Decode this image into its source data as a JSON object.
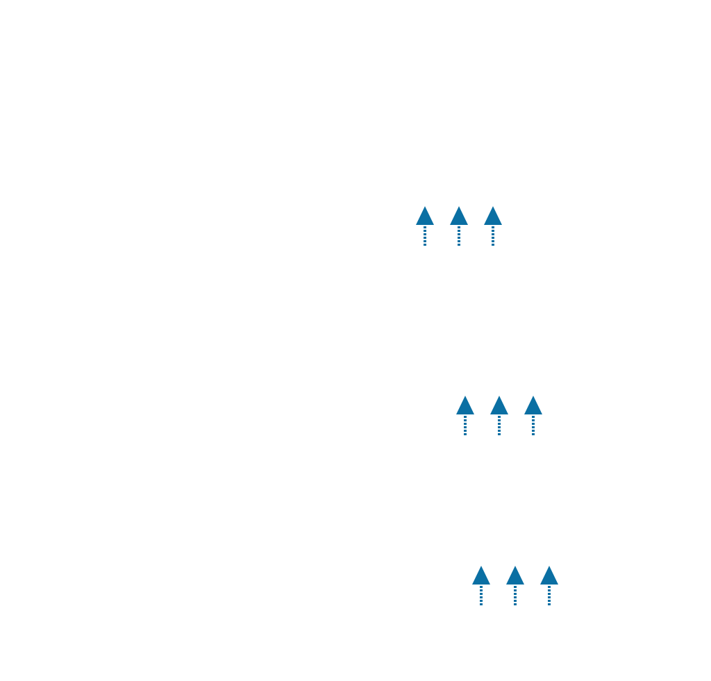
{
  "colors": {
    "background": "#ffffff",
    "arrow": "#0a6fa3"
  },
  "arrow_groups": [
    {
      "group": "top",
      "arrows": [
        {
          "direction": "up",
          "icon": "dotted-up-arrow-icon"
        },
        {
          "direction": "up",
          "icon": "dotted-up-arrow-icon"
        },
        {
          "direction": "up",
          "icon": "dotted-up-arrow-icon"
        }
      ]
    },
    {
      "group": "middle",
      "arrows": [
        {
          "direction": "up",
          "icon": "dotted-up-arrow-icon"
        },
        {
          "direction": "up",
          "icon": "dotted-up-arrow-icon"
        },
        {
          "direction": "up",
          "icon": "dotted-up-arrow-icon"
        }
      ]
    },
    {
      "group": "bottom",
      "arrows": [
        {
          "direction": "up",
          "icon": "dotted-up-arrow-icon"
        },
        {
          "direction": "up",
          "icon": "dotted-up-arrow-icon"
        },
        {
          "direction": "up",
          "icon": "dotted-up-arrow-icon"
        }
      ]
    }
  ]
}
